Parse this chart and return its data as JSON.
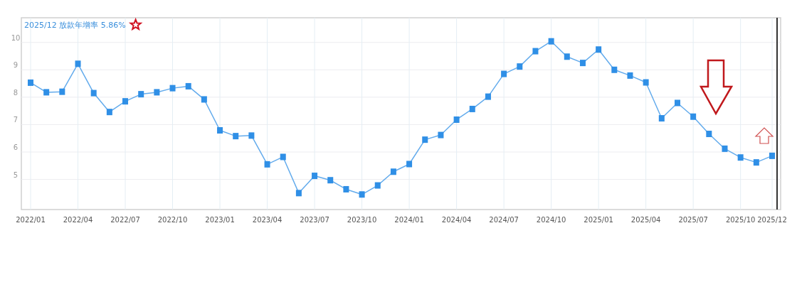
{
  "chart_data": {
    "type": "line",
    "title": "2025/12 放款年增率 5.86%",
    "categories": [
      "2022/01",
      null,
      null,
      "2022/04",
      null,
      null,
      "2022/07",
      null,
      null,
      "2022/10",
      null,
      null,
      "2023/01",
      null,
      null,
      "2023/04",
      null,
      null,
      "2023/07",
      null,
      null,
      "2023/10",
      null,
      null,
      "2024/01",
      null,
      null,
      "2024/04",
      null,
      null,
      "2024/07",
      null,
      null,
      "2024/10",
      null,
      null,
      "2025/01",
      null,
      null,
      "2025/04",
      null,
      null,
      "2025/07",
      null,
      null,
      "2025/10",
      null,
      "2025/12"
    ],
    "values": [
      8.53,
      8.18,
      8.2,
      9.22,
      8.15,
      7.46,
      7.85,
      8.11,
      8.18,
      8.33,
      8.4,
      7.92,
      6.79,
      6.58,
      6.6,
      5.55,
      5.82,
      4.5,
      5.13,
      4.97,
      4.64,
      4.45,
      4.78,
      5.28,
      5.56,
      6.45,
      6.62,
      7.18,
      7.57,
      8.02,
      8.85,
      9.12,
      9.68,
      10.04,
      9.48,
      9.25,
      9.74,
      9,
      8.79,
      8.54,
      7.23,
      7.79,
      7.29,
      6.66,
      6.12,
      5.8,
      5.62,
      5.86
    ],
    "color": "#2f8fe6",
    "ylim": [
      3.9,
      10.9
    ],
    "yticks": [
      5,
      6,
      7,
      8,
      9,
      10
    ],
    "grid": true,
    "marker": "square",
    "ref_lines": [
      {
        "axis": "x",
        "value": "2025/12",
        "color": "#333333"
      }
    ]
  }
}
